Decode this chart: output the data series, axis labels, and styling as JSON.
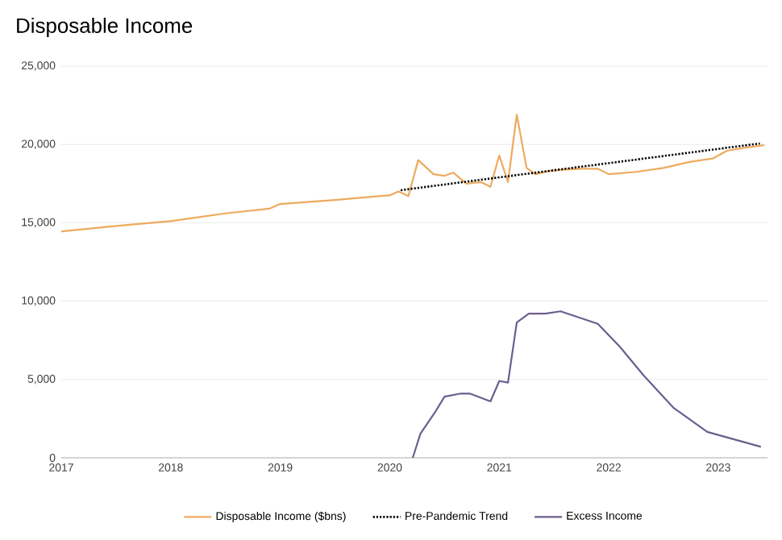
{
  "chart_data": {
    "type": "line",
    "title": "Disposable Income",
    "xlim": [
      2017,
      2023.45
    ],
    "xticks": [
      2017,
      2018,
      2019,
      2020,
      2021,
      2022,
      2023
    ],
    "ylim": [
      0,
      25000
    ],
    "yticks": [
      0,
      {
        "value": 5000,
        "label": "5,000"
      },
      {
        "value": 10000,
        "label": "10,000"
      },
      {
        "value": 15000,
        "label": "15,000"
      },
      {
        "value": 20000,
        "label": "20,000"
      },
      {
        "value": 25000,
        "label": "25,000"
      }
    ],
    "grid": "y",
    "legend": "bottom",
    "marker": "none",
    "series": [
      {
        "name": "Disposable Income ($bns)",
        "color": "#eeaa5f",
        "line_style": "solid",
        "x": [
          2017,
          2017.5,
          2018,
          2018.5,
          2018.9,
          2019.0,
          2019.5,
          2019.9,
          2020.0,
          2020.08,
          2020.17,
          2020.26,
          2020.4,
          2020.5,
          2020.58,
          2020.7,
          2020.83,
          2020.92,
          2021.0,
          2021.08,
          2021.16,
          2021.25,
          2021.33,
          2021.45,
          2021.6,
          2021.75,
          2021.9,
          2022.0,
          2022.25,
          2022.5,
          2022.75,
          2022.95,
          2023.08,
          2023.25,
          2023.42
        ],
        "values": [
          14450,
          14800,
          15100,
          15600,
          15900,
          16200,
          16450,
          16700,
          16750,
          17000,
          16700,
          19000,
          18100,
          18000,
          18200,
          17500,
          17600,
          17300,
          19300,
          17600,
          21900,
          18500,
          18100,
          18300,
          18400,
          18450,
          18450,
          18100,
          18250,
          18500,
          18900,
          19100,
          19600,
          19800,
          19950
        ]
      },
      {
        "name": "Pre-Pandemic Trend",
        "color": "#000000",
        "line_style": "dotted",
        "x": [
          2020.1,
          2023.38
        ],
        "values": [
          17080,
          20060
        ]
      },
      {
        "name": "Excess Income",
        "color": "#6b5e8e",
        "line_style": "solid",
        "x": [
          2020.21,
          2020.28,
          2020.42,
          2020.5,
          2020.65,
          2020.73,
          2020.92,
          2021.0,
          2021.08,
          2021.16,
          2021.27,
          2021.42,
          2021.56,
          2021.9,
          2022.1,
          2022.32,
          2022.59,
          2022.9,
          2023.39
        ],
        "values": [
          0,
          1540,
          2980,
          3900,
          4100,
          4100,
          3600,
          4900,
          4800,
          8640,
          9200,
          9200,
          9350,
          8550,
          7100,
          5250,
          3200,
          1650,
          700
        ]
      }
    ]
  }
}
